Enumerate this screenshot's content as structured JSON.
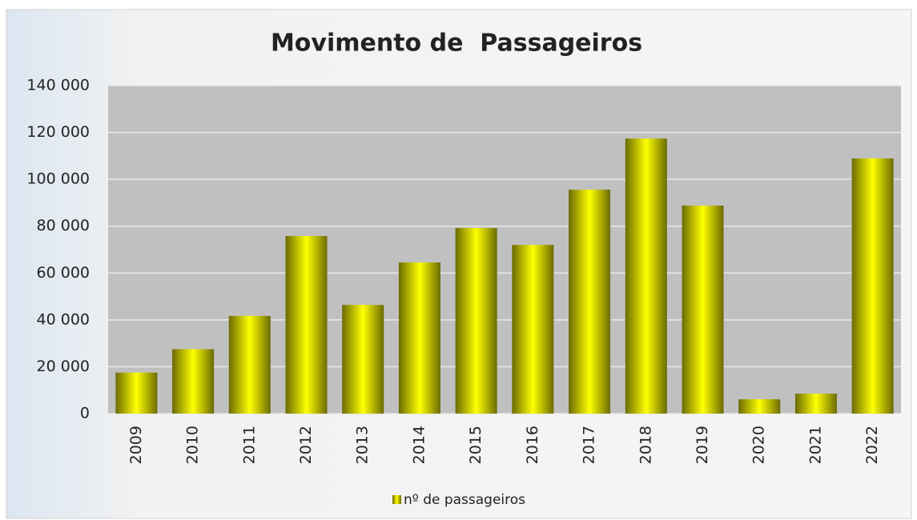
{
  "chart_data": {
    "type": "bar",
    "title": "Movimento de  Passageiros",
    "categories": [
      "2009",
      "2010",
      "2011",
      "2012",
      "2013",
      "2014",
      "2015",
      "2016",
      "2017",
      "2018",
      "2019",
      "2020",
      "2021",
      "2022"
    ],
    "series": [
      {
        "name": "nº de passageiros",
        "color": "#ffff00",
        "values": [
          17500,
          27500,
          41700,
          75800,
          46400,
          64500,
          79200,
          72000,
          95600,
          117400,
          88800,
          6100,
          8500,
          108900
        ]
      }
    ],
    "ylim": [
      0,
      140000
    ],
    "yticks": [
      0,
      {
        "value": 20000,
        "label": "20 000"
      },
      {
        "value": 40000,
        "label": "40 000"
      },
      {
        "value": 60000,
        "label": "60 000"
      },
      {
        "value": 80000,
        "label": "80 000"
      },
      {
        "value": 100000,
        "label": "100 000"
      },
      {
        "value": 120000,
        "label": "120 000"
      },
      {
        "value": 140000,
        "label": "140 000"
      }
    ],
    "grid": true,
    "legend": "bottom"
  }
}
